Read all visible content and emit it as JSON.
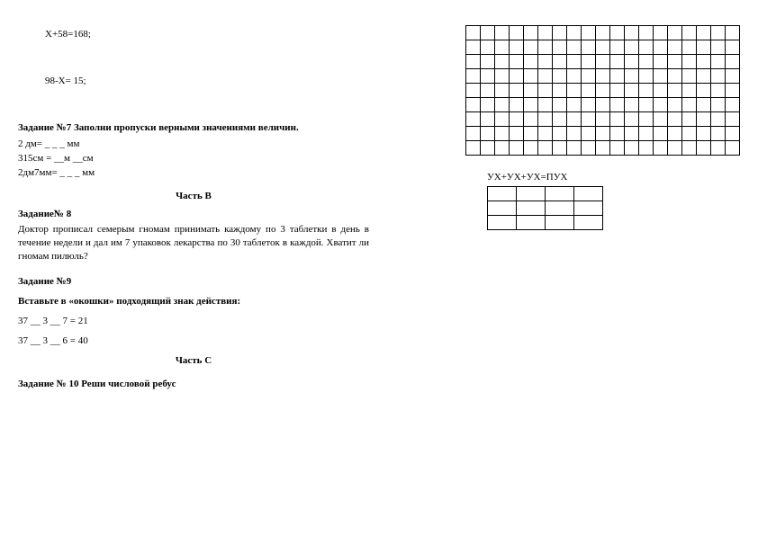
{
  "equations": {
    "eq1": "X+58=168;",
    "eq2": "98-X= 15;"
  },
  "task7": {
    "title": "Задание №7 Заполни пропуски верными значениями величин.",
    "line1": "2 дм=  _ _ _  мм",
    "line2": "315см = __м  __см",
    "line3": "2дм7мм= _ _ _  мм"
  },
  "partB": "Часть В",
  "task8": {
    "title": "Задание№ 8",
    "body": "Доктор прописал семерым гномам принимать каждому по 3 таблетки в день в течение недели и дал им 7 упаковок лекарства по 30 таблеток в каждой. Хватит ли гномам пилюль?"
  },
  "task9": {
    "title": "Задание №9",
    "sub": "Вставьте в «окошки» подходящий знак действия:",
    "line1": "37  __ 3 __ 7 = 21",
    "line2": "37 __ 3 __  6 = 40"
  },
  "partC": "Часть С",
  "task10": {
    "title": "Задание № 10 Реши числовой ребус"
  },
  "rightside": {
    "grid1_rows": 9,
    "grid1_cols": 19,
    "caption": "УХ+УХ+УХ=ПУХ",
    "grid2_rows": 3,
    "grid2_cols": 4
  }
}
